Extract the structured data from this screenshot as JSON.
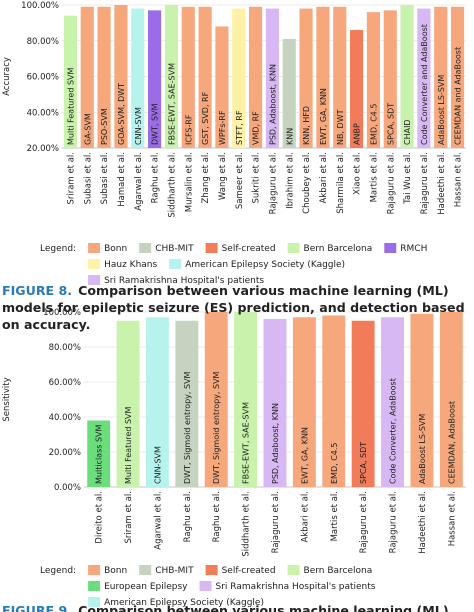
{
  "chart_data": [
    {
      "type": "bar",
      "y_label": "Accuracy",
      "legend_title": "Legend:",
      "grid": true,
      "ylim": [
        20,
        100
      ],
      "yticks": [
        {
          "value": 20,
          "label": "20.00%"
        },
        {
          "value": 40,
          "label": "40.00%"
        },
        {
          "value": 60,
          "label": "60.00%"
        },
        {
          "value": 80,
          "label": "80.00%"
        },
        {
          "value": 100,
          "label": "100.00%"
        }
      ],
      "categories": [
        "Sriram et al.",
        "Subasi et al.",
        "Subasi et al.",
        "Hamad et al.",
        "Agarwal et al.",
        "Raghu et al.",
        "Siddharth et al.",
        "Mursalin et al.",
        "Zhang et al.",
        "Wang et al.",
        "Sameer et al.",
        "Sukriti et al.",
        "Rajaguru et al.",
        "Ibrahim et al.",
        "Choubey et al.",
        "Akbari et al.",
        "Sharmila et al.",
        "Xiao et al.",
        "Martis et al.",
        "Rajaguru et al.",
        "Tai Wu et al.",
        "Rajaguru et al.",
        "Hadeethi et al.",
        "Hassan et al."
      ],
      "bar_labels": [
        "Multi Featured SVM",
        "GA-SVM",
        "PSO-SVM",
        "GOA-SVM, DWT",
        "CNN-SVM",
        "DWT, SVM",
        "FBSE-EWT, SAE-SVM",
        "ICFS-RF",
        "GST, SVD, RF",
        "WPFs-RF",
        "STFT, RF",
        "VMD, RF",
        "PSD, Adaboost, KNN",
        "KNN",
        "KNN, HFD",
        "EWT, GA, KNN",
        "NB, DWT",
        "ANBP",
        "EMD, C4.5",
        "SPCA, SDT",
        "CHAID",
        "Code Converter and AdaBoost",
        "AdaBoost LS-SVM",
        "CEEMDAN and AdaBoost"
      ],
      "series": [
        {
          "name": "Bonn",
          "color": "#f6a77c",
          "values": [
            null,
            99,
            99,
            100,
            null,
            null,
            null,
            99,
            99,
            88,
            null,
            99,
            null,
            null,
            98,
            99,
            99,
            null,
            96,
            97,
            null,
            null,
            99,
            99
          ]
        },
        {
          "name": "CHB-MIT",
          "color": "#c6d3c1",
          "values": [
            null,
            null,
            null,
            null,
            null,
            null,
            null,
            null,
            null,
            null,
            null,
            null,
            null,
            81,
            null,
            null,
            null,
            null,
            null,
            null,
            null,
            null,
            null,
            null
          ]
        },
        {
          "name": "Self-created",
          "color": "#f27c5a",
          "values": [
            null,
            null,
            null,
            null,
            null,
            null,
            null,
            null,
            null,
            null,
            null,
            null,
            null,
            null,
            null,
            null,
            null,
            86,
            null,
            null,
            null,
            null,
            null,
            null
          ]
        },
        {
          "name": "Bern Barcelona",
          "color": "#c9f2ad",
          "values": [
            94,
            null,
            null,
            null,
            null,
            null,
            100,
            null,
            null,
            null,
            null,
            null,
            null,
            null,
            null,
            null,
            null,
            null,
            null,
            null,
            100,
            null,
            null,
            null
          ]
        },
        {
          "name": "RMCH",
          "color": "#9a6de6",
          "values": [
            null,
            null,
            null,
            null,
            null,
            97,
            null,
            null,
            null,
            null,
            null,
            null,
            null,
            null,
            null,
            null,
            null,
            null,
            null,
            null,
            null,
            null,
            null,
            null
          ]
        },
        {
          "name": "Hauz Khans",
          "color": "#fff1a6",
          "values": [
            null,
            null,
            null,
            null,
            null,
            null,
            null,
            null,
            null,
            null,
            98,
            null,
            null,
            null,
            null,
            null,
            null,
            null,
            null,
            null,
            null,
            null,
            null,
            null
          ]
        },
        {
          "name": "American Epilepsy Society (Kaggle)",
          "color": "#b6f3ee",
          "values": [
            null,
            null,
            null,
            null,
            98,
            null,
            null,
            null,
            null,
            null,
            null,
            null,
            null,
            null,
            null,
            null,
            null,
            null,
            null,
            null,
            null,
            null,
            null,
            null
          ]
        },
        {
          "name": "Sri Ramakrishna Hospital's patients",
          "color": "#d7b8f3",
          "values": [
            null,
            null,
            null,
            null,
            null,
            null,
            null,
            null,
            null,
            null,
            null,
            null,
            98,
            null,
            null,
            null,
            null,
            null,
            null,
            null,
            null,
            98,
            null,
            null
          ]
        }
      ]
    },
    {
      "type": "bar",
      "y_label": "Sensitivity",
      "legend_title": "Legend:",
      "grid": true,
      "ylim": [
        0,
        100
      ],
      "yticks": [
        {
          "value": 0,
          "label": "0.00%"
        },
        {
          "value": 20,
          "label": "20.00%"
        },
        {
          "value": 40,
          "label": "40.00%"
        },
        {
          "value": 60,
          "label": "60.00%"
        },
        {
          "value": 80,
          "label": "80.00%"
        },
        {
          "value": 100,
          "label": "100.00%"
        }
      ],
      "categories": [
        "Direito et al.",
        "Sriram et al.",
        "Agarwal et al.",
        "Raghu et al.",
        "Raghu et al.",
        "Siddharth et al.",
        "Rajaguru et al.",
        "Akbari et al.",
        "Martis et al.",
        "Rajaguru et al.",
        "Rajaguru et al.",
        "Hadeethi et al.",
        "Hassan et al."
      ],
      "bar_labels": [
        "Multiclass SVM",
        "Multi Featured SVM",
        "CNN-SVM",
        "DWT, Sigmoid entropy, SVM",
        "DWT, Sigmoid entropy, SVM",
        "FBSE-EWT, SAE-SVM",
        "PSD, Adaboost, KNN",
        "EWT, GA, KNN",
        "EMD, C4.5",
        "SPCA, SDT",
        "Code Converter, AdaBoost",
        "AdaBoost LS-SVM",
        "CEEMDAN, AdaBoost"
      ],
      "series": [
        {
          "name": "Bonn",
          "color": "#f6a77c",
          "values": [
            null,
            null,
            null,
            null,
            100,
            null,
            null,
            97,
            98,
            null,
            null,
            99,
            100
          ]
        },
        {
          "name": "CHB-MIT",
          "color": "#c6d3c1",
          "values": [
            null,
            null,
            null,
            95,
            null,
            null,
            null,
            null,
            null,
            null,
            null,
            null,
            null
          ]
        },
        {
          "name": "Self-created",
          "color": "#f27c5a",
          "values": [
            null,
            null,
            null,
            null,
            null,
            null,
            null,
            null,
            null,
            95,
            null,
            null,
            null
          ]
        },
        {
          "name": "Bern Barcelona",
          "color": "#c9f2ad",
          "values": [
            null,
            95,
            null,
            null,
            null,
            100,
            null,
            null,
            null,
            null,
            null,
            null,
            null
          ]
        },
        {
          "name": "European Epilepsy",
          "color": "#6ade7c",
          "values": [
            38,
            null,
            null,
            null,
            null,
            null,
            null,
            null,
            null,
            null,
            null,
            null,
            null
          ]
        },
        {
          "name": "Sri Ramakrishna Hospital's patients",
          "color": "#d7b8f3",
          "values": [
            null,
            null,
            null,
            null,
            null,
            null,
            96,
            null,
            null,
            null,
            97,
            null,
            null
          ]
        },
        {
          "name": "American Epilepsy Society (Kaggle)",
          "color": "#b6f3ee",
          "values": [
            null,
            null,
            97,
            null,
            null,
            null,
            null,
            null,
            null,
            null,
            null,
            null,
            null
          ]
        }
      ]
    }
  ],
  "captions": [
    {
      "label": "FIGURE 8.",
      "text": "Comparison between various machine learning (ML) models for epileptic seizure (ES) prediction, and detection based on accuracy."
    },
    {
      "label": "FIGURE 9.",
      "text": "Comparison between various machine learning (ML) models"
    }
  ]
}
